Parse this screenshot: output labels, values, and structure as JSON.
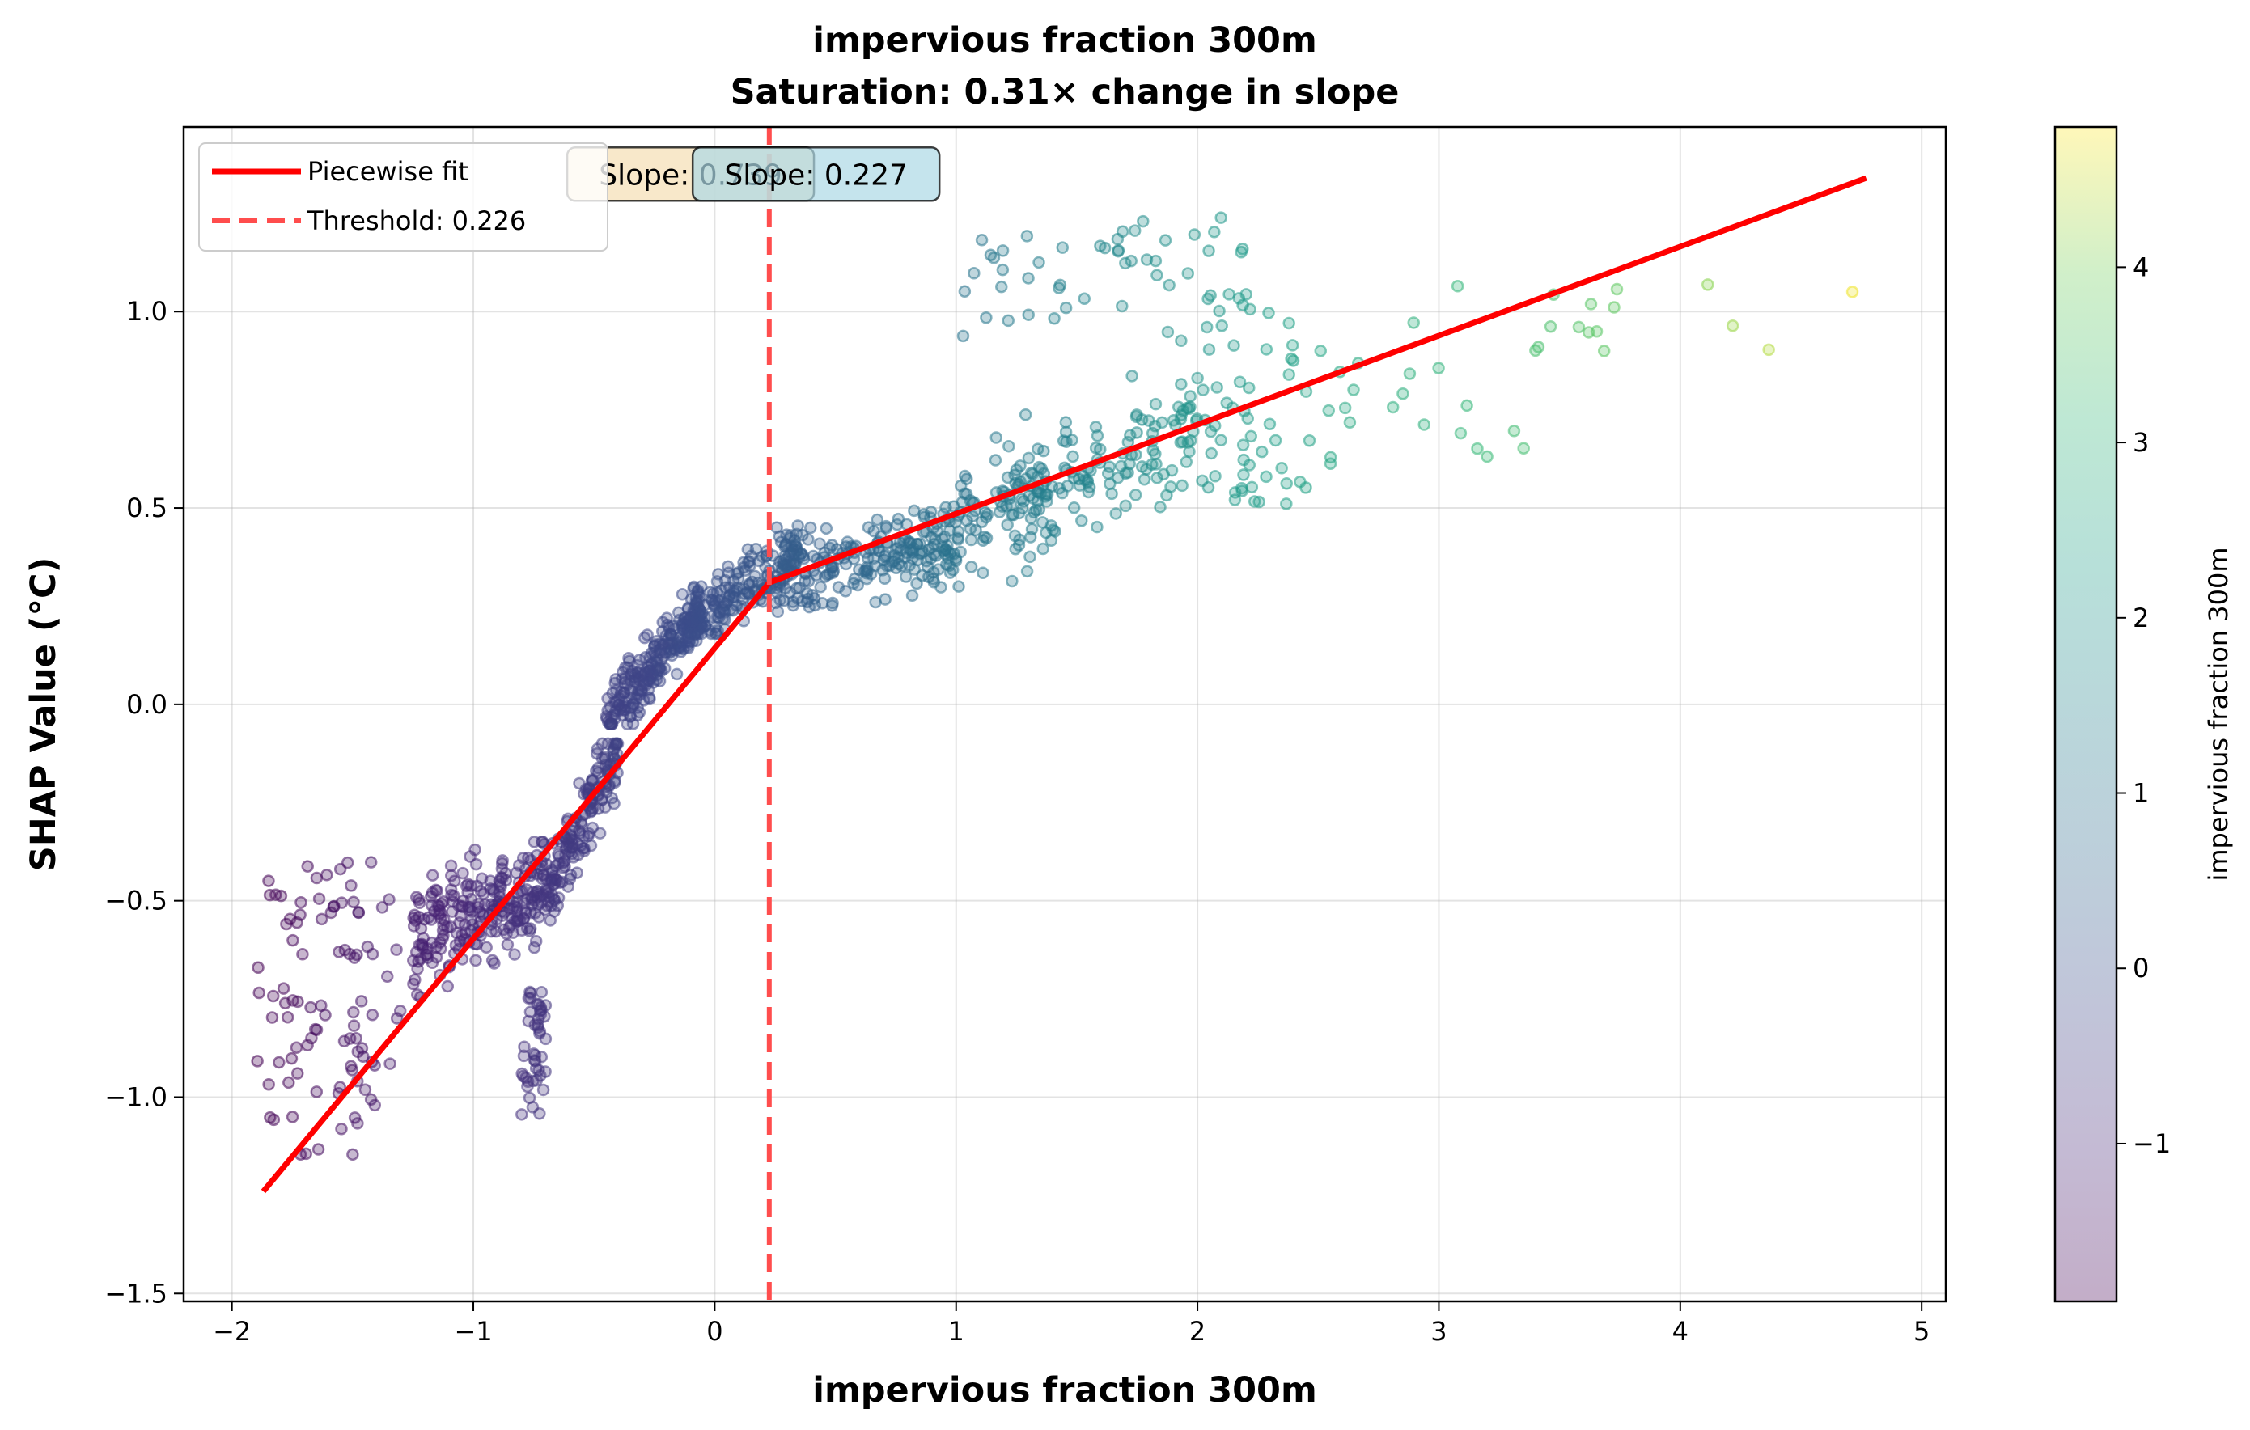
{
  "chart_data": {
    "type": "scatter",
    "title": "impervious fraction 300m",
    "subtitle": "Saturation: 0.31× change in slope",
    "xlabel": "impervious fraction 300m",
    "ylabel": "SHAP Value (°C)",
    "xlim": [
      -2.2,
      5.1
    ],
    "ylim": [
      -1.52,
      1.47
    ],
    "xticks": [
      -2,
      -1,
      0,
      1,
      2,
      3,
      4,
      5
    ],
    "xtick_labels": [
      "−2",
      "−1",
      "0",
      "1",
      "2",
      "3",
      "4",
      "5"
    ],
    "yticks": [
      -1.5,
      -1.0,
      -0.5,
      0.0,
      0.5,
      1.0
    ],
    "ytick_labels": [
      "−1.5",
      "−1.0",
      "−0.5",
      "0.0",
      "0.5",
      "1.0"
    ],
    "grid": true,
    "legend_position": "top-left",
    "colormap": "viridis",
    "point_alpha": 0.3,
    "colorbar": {
      "label": "impervious fraction 300m",
      "range": [
        -1.9,
        4.8
      ],
      "ticks": [
        -1,
        0,
        1,
        2,
        3,
        4
      ],
      "tick_labels": [
        "−1",
        "0",
        "1",
        "2",
        "3",
        "4"
      ]
    },
    "series": [
      {
        "name": "Piecewise fit",
        "kind": "line",
        "color": "#ff0000",
        "x": [
          -1.87,
          0.226,
          4.77
        ],
        "y": [
          -1.24,
          0.31,
          1.34
        ]
      },
      {
        "name": "Threshold: 0.226",
        "kind": "vline",
        "color": "#ff4d4d",
        "x": 0.226
      }
    ],
    "annotations": [
      {
        "text": "Slope: 0.739",
        "x": -0.1,
        "y": 1.35,
        "bg": "#f5deb3"
      },
      {
        "text": "Slope: 0.227",
        "x": 0.42,
        "y": 1.35,
        "bg": "#add8e6"
      }
    ],
    "scatter_clusters": [
      {
        "x": [
          -1.9,
          -1.3
        ],
        "y": [
          -1.15,
          -0.4
        ],
        "n": 95,
        "spread": "uniform"
      },
      {
        "x": [
          -1.25,
          -0.7
        ],
        "y": [
          -0.95,
          -0.35
        ],
        "n": 240,
        "trend": [
          -0.6,
          -0.45
        ]
      },
      {
        "x": [
          -0.8,
          -0.7
        ],
        "y": [
          -1.05,
          -0.7
        ],
        "n": 45
      },
      {
        "x": [
          -0.7,
          -0.4
        ],
        "y": [
          -0.55,
          -0.1
        ],
        "n": 160,
        "trend": [
          -0.5,
          -0.1
        ]
      },
      {
        "x": [
          -0.45,
          -0.05
        ],
        "y": [
          -0.05,
          0.3
        ],
        "n": 240,
        "trend": [
          -0.05,
          0.25
        ]
      },
      {
        "x": [
          -0.1,
          0.35
        ],
        "y": [
          0.18,
          0.5
        ],
        "n": 160,
        "trend": [
          0.2,
          0.4
        ]
      },
      {
        "x": [
          0.25,
          1.0
        ],
        "y": [
          0.15,
          0.65
        ],
        "n": 220,
        "trend": [
          0.32,
          0.42
        ]
      },
      {
        "x": [
          1.0,
          2.0
        ],
        "y": [
          0.3,
          0.95
        ],
        "n": 200,
        "trend": [
          0.45,
          0.7
        ]
      },
      {
        "x": [
          1.0,
          2.2
        ],
        "y": [
          0.9,
          1.25
        ],
        "n": 50
      },
      {
        "x": [
          2.0,
          2.6
        ],
        "y": [
          0.5,
          1.05
        ],
        "n": 60
      },
      {
        "x": [
          2.6,
          3.8
        ],
        "y": [
          0.6,
          1.15
        ],
        "n": 28
      },
      {
        "x": [
          3.9,
          4.8
        ],
        "y": [
          0.9,
          1.3
        ],
        "n": 4
      }
    ]
  }
}
